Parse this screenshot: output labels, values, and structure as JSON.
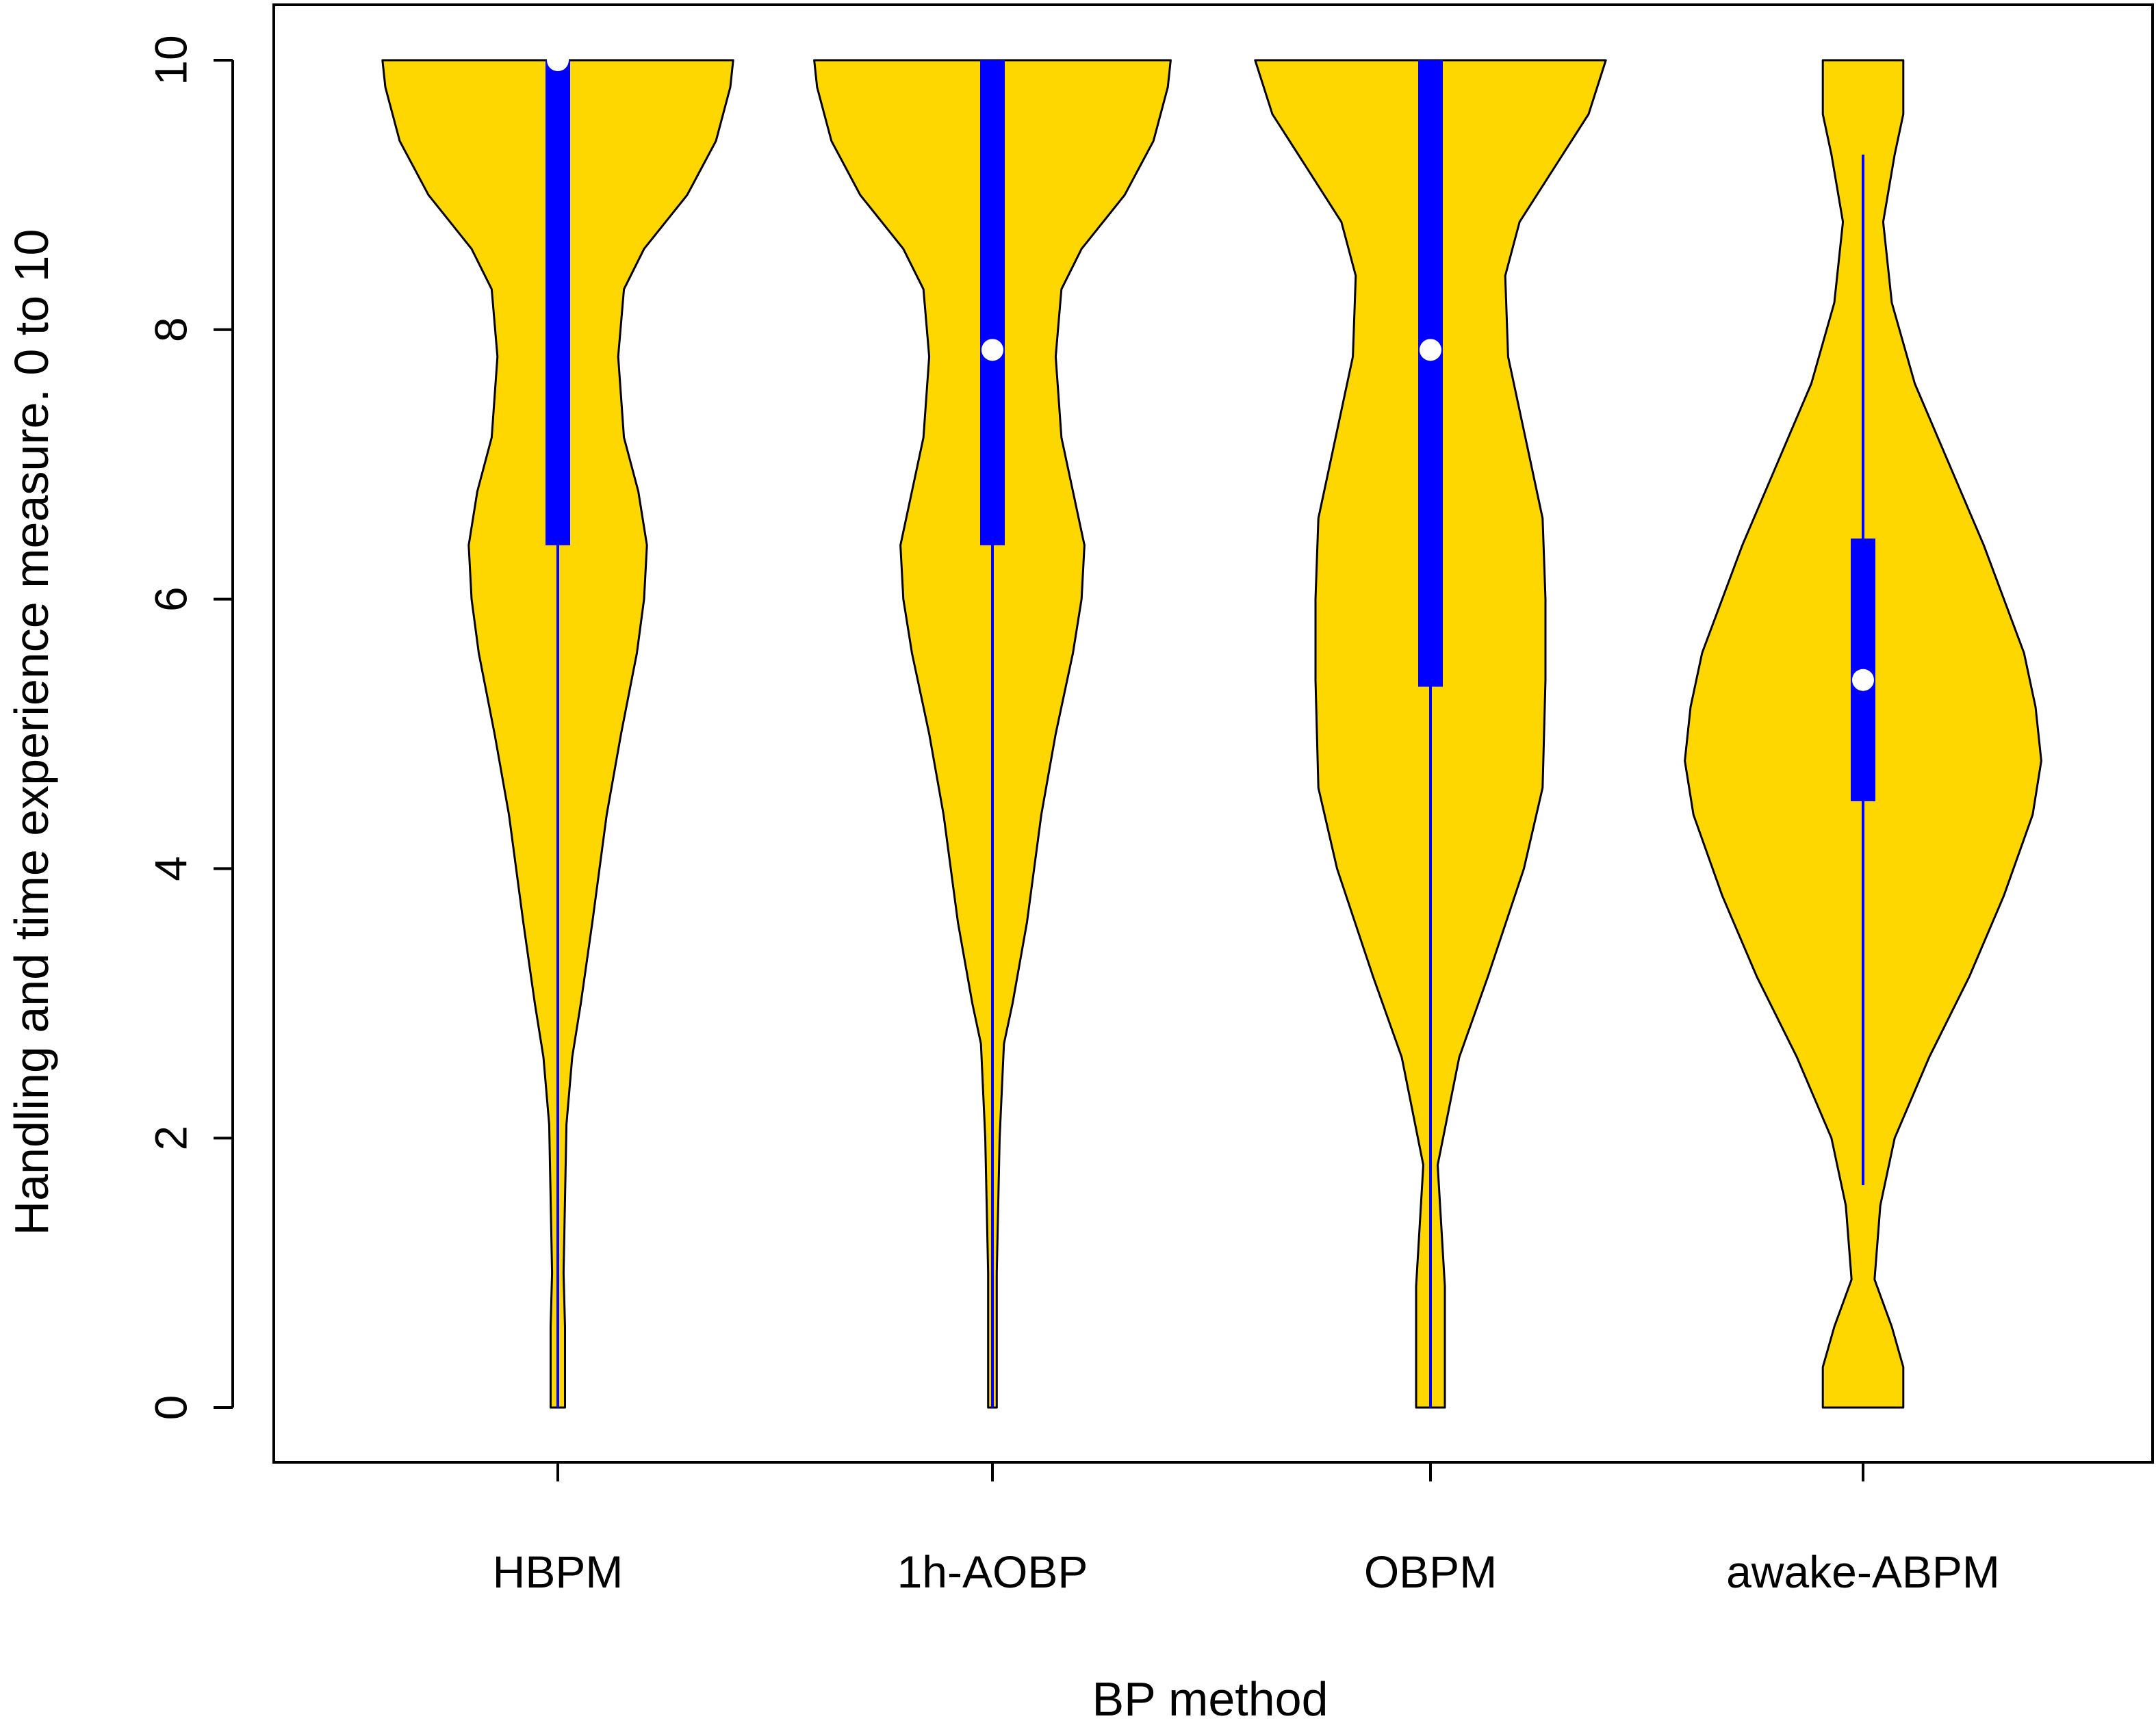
{
  "chart_data": {
    "type": "violin",
    "xlabel": "BP method",
    "ylabel": "Handling and time experience measure. 0 to 10",
    "ylim": [
      0,
      10
    ],
    "yticks": [
      0,
      2,
      4,
      6,
      8,
      10
    ],
    "categories": [
      "HBPM",
      "1h-AOBP",
      "OBPM",
      "awake-ABPM"
    ],
    "colors": {
      "violin_fill": "#FFD700",
      "violin_outline": "#000000",
      "box": "#0000FF",
      "median_marker": "#FFFFFF",
      "frame": "#000000"
    },
    "boxplots": [
      {
        "category": "HBPM",
        "median": 10.0,
        "q1": 6.4,
        "q3": 10.0,
        "whisker_low": 0.0,
        "whisker_high": 10.0
      },
      {
        "category": "1h-AOBP",
        "median": 7.85,
        "q1": 6.4,
        "q3": 10.0,
        "whisker_low": 0.0,
        "whisker_high": 10.0
      },
      {
        "category": "OBPM",
        "median": 7.85,
        "q1": 5.35,
        "q3": 10.0,
        "whisker_low": 0.0,
        "whisker_high": 10.0
      },
      {
        "category": "awake-ABPM",
        "median": 5.4,
        "q1": 4.5,
        "q3": 6.45,
        "whisker_low": 1.65,
        "whisker_high": 9.3
      }
    ],
    "densities": [
      {
        "category": "HBPM",
        "y": [
          0,
          0.6,
          1.0,
          2.1,
          2.6,
          3.0,
          3.6,
          4.4,
          5.0,
          5.6,
          6.0,
          6.4,
          6.8,
          7.2,
          7.8,
          8.3,
          8.6,
          9.0,
          9.4,
          9.8,
          10.0
        ],
        "half_width": [
          0.05,
          0.05,
          0.04,
          0.06,
          0.1,
          0.16,
          0.24,
          0.34,
          0.44,
          0.55,
          0.6,
          0.62,
          0.56,
          0.46,
          0.42,
          0.46,
          0.6,
          0.9,
          1.1,
          1.2,
          1.22
        ]
      },
      {
        "category": "1h-AOBP",
        "y": [
          0,
          0.3,
          1.0,
          2.0,
          2.7,
          3.0,
          3.6,
          4.4,
          5.0,
          5.6,
          6.0,
          6.4,
          6.8,
          7.2,
          7.8,
          8.3,
          8.6,
          9.0,
          9.4,
          9.8,
          10.0
        ],
        "half_width": [
          0.03,
          0.03,
          0.03,
          0.05,
          0.08,
          0.14,
          0.24,
          0.34,
          0.44,
          0.56,
          0.62,
          0.64,
          0.56,
          0.48,
          0.44,
          0.48,
          0.62,
          0.92,
          1.12,
          1.22,
          1.24
        ]
      },
      {
        "category": "OBPM",
        "y": [
          0,
          0.9,
          1.8,
          2.6,
          3.2,
          4.0,
          4.6,
          5.4,
          6.0,
          6.6,
          7.2,
          7.8,
          8.4,
          8.8,
          9.2,
          9.6,
          10.0
        ],
        "half_width": [
          0.1,
          0.1,
          0.05,
          0.2,
          0.4,
          0.65,
          0.78,
          0.8,
          0.8,
          0.78,
          0.66,
          0.54,
          0.52,
          0.62,
          0.86,
          1.1,
          1.22
        ]
      },
      {
        "category": "awake-ABPM",
        "y": [
          0,
          0.3,
          0.6,
          0.95,
          1.5,
          2.0,
          2.6,
          3.2,
          3.8,
          4.4,
          4.8,
          5.2,
          5.6,
          6.0,
          6.4,
          7.0,
          7.6,
          8.2,
          8.8,
          9.3,
          9.6,
          10.0
        ],
        "half_width": [
          0.28,
          0.28,
          0.2,
          0.08,
          0.12,
          0.22,
          0.46,
          0.74,
          0.98,
          1.18,
          1.24,
          1.2,
          1.12,
          0.98,
          0.84,
          0.6,
          0.36,
          0.2,
          0.14,
          0.22,
          0.28,
          0.28
        ]
      }
    ]
  }
}
